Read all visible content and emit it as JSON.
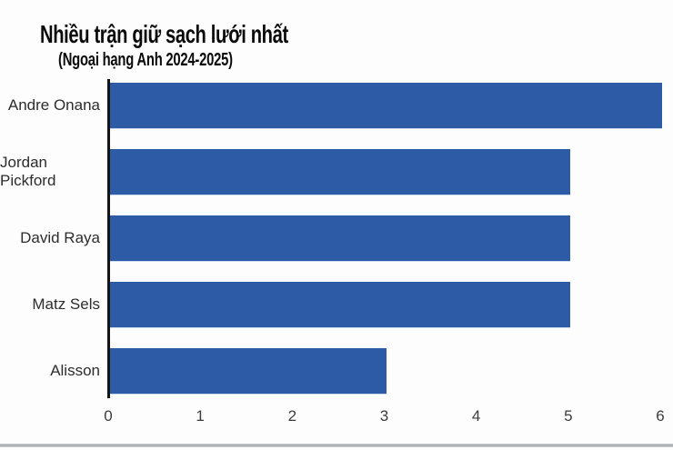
{
  "title": "Nhiều trận giữ sạch lưới nhất",
  "subtitle": "(Ngoại hạng Anh 2024-2025)",
  "chart_data": {
    "type": "bar",
    "orientation": "horizontal",
    "title": "Nhiều trận giữ sạch lưới nhất",
    "subtitle": "(Ngoại hạng Anh 2024-2025)",
    "categories": [
      "Andre Onana",
      "Jordan Pickford",
      "David Raya",
      "Matz Sels",
      "Alisson"
    ],
    "values": [
      6,
      5,
      5,
      5,
      3
    ],
    "xlabel": "",
    "ylabel": "",
    "xlim": [
      0,
      6
    ],
    "xticks": [
      0,
      1,
      2,
      3,
      4,
      5,
      6
    ],
    "grid": false,
    "legend": "none",
    "bar_color": "#2d5ba6",
    "axis_color": "#141414",
    "label_color": "#2d2d2d",
    "tick_color": "#3c3c3c"
  }
}
